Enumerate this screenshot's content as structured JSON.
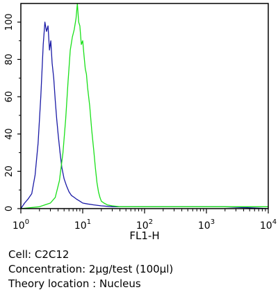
{
  "chart_data": {
    "type": "line",
    "title": "",
    "xlabel": "FL1-H",
    "ylabel": "",
    "x_scale": "log",
    "xlim": [
      1,
      10000
    ],
    "ylim": [
      0,
      110
    ],
    "x_ticks": [
      {
        "base": "10",
        "exp": "0"
      },
      {
        "base": "10",
        "exp": "1"
      },
      {
        "base": "10",
        "exp": "2"
      },
      {
        "base": "10",
        "exp": "3"
      },
      {
        "base": "10",
        "exp": "4"
      }
    ],
    "y_ticks": [
      "0",
      "20",
      "40",
      "60",
      "80",
      "100"
    ],
    "y_tick_values": [
      0,
      20,
      40,
      60,
      80,
      100
    ],
    "grid": false,
    "legend": "none",
    "series": [
      {
        "color": "#1a1aa6",
        "x": [
          1.0,
          1.15,
          1.3,
          1.5,
          1.7,
          1.9,
          2.1,
          2.3,
          2.45,
          2.6,
          2.75,
          2.9,
          3.05,
          3.2,
          3.4,
          3.6,
          3.8,
          4.0,
          4.3,
          4.6,
          5.0,
          5.5,
          6.0,
          6.6,
          7.3,
          8.0,
          9.0,
          10.0,
          12.0,
          15.0,
          20.0,
          30.0,
          50.0,
          100.0,
          300.0,
          1000.0,
          2000.0,
          10000.0
        ],
        "y": [
          0,
          3,
          5,
          8,
          18,
          35,
          60,
          88,
          100,
          95,
          98,
          85,
          90,
          78,
          70,
          58,
          48,
          40,
          30,
          22,
          16,
          12,
          9,
          7,
          6,
          5,
          4,
          3,
          2.5,
          2,
          1.5,
          1,
          1,
          1,
          1,
          1,
          1,
          0
        ]
      },
      {
        "color": "#19e019",
        "x": [
          1.0,
          2.0,
          3.0,
          3.6,
          4.2,
          4.8,
          5.3,
          5.8,
          6.3,
          6.8,
          7.3,
          7.8,
          8.2,
          8.6,
          9.0,
          9.5,
          10.0,
          10.5,
          11.0,
          11.5,
          12.0,
          13.0,
          14.0,
          15.0,
          16.0,
          17.0,
          18.0,
          19.0,
          20.0,
          22.0,
          25.0,
          30.0,
          40.0,
          60.0,
          100.0,
          300.0,
          1000.0,
          3000.0,
          10000.0
        ],
        "y": [
          0,
          1,
          3,
          6,
          15,
          30,
          48,
          68,
          85,
          92,
          96,
          102,
          110,
          100,
          98,
          88,
          90,
          82,
          75,
          72,
          65,
          55,
          42,
          32,
          22,
          14,
          9,
          6,
          4,
          3,
          2,
          1.5,
          1,
          1,
          1,
          1,
          1,
          1,
          1
        ]
      }
    ]
  },
  "captions": {
    "cell": "Cell: C2C12",
    "concentration": "Concentration: 2μg/test (100μl)",
    "location": "Theory location : Nucleus"
  }
}
